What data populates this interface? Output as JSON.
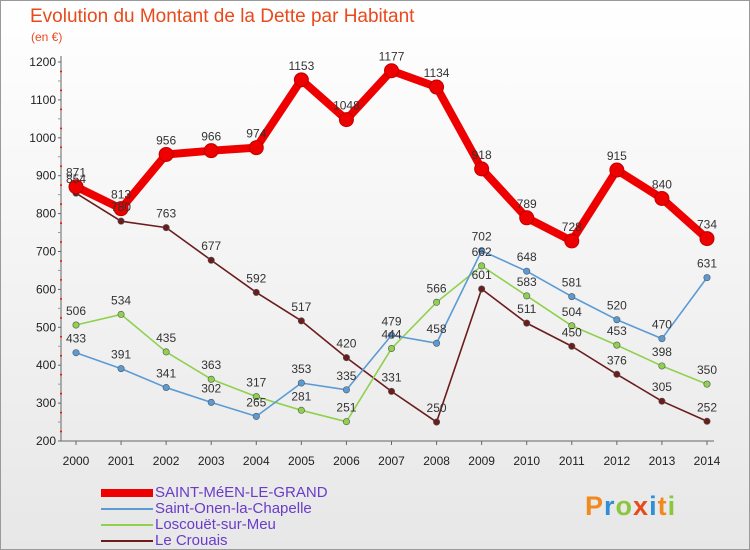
{
  "header": {
    "title": "Evolution du Montant de la Dette par Habitant",
    "unit": "(en €)"
  },
  "logo": {
    "text": "Proxiti",
    "colors": [
      "#f08a1f",
      "#2d8fd5",
      "#8cc63f",
      "#e84a1c",
      "#2d8fd5",
      "#f08a1f",
      "#8cc63f"
    ]
  },
  "chart_data": {
    "type": "line",
    "title": "Evolution du Montant de la Dette par Habitant",
    "subtitle": "(en €)",
    "x": [
      2000,
      2001,
      2002,
      2003,
      2004,
      2005,
      2006,
      2007,
      2008,
      2009,
      2010,
      2011,
      2012,
      2013,
      2014
    ],
    "ylim": [
      200,
      1200
    ],
    "yticks": [
      200,
      300,
      400,
      500,
      600,
      700,
      800,
      900,
      1000,
      1100,
      1200
    ],
    "grid": false,
    "legend_position": "bottom-left",
    "series": [
      {
        "name": "SAINT-MéEN-LE-GRAND",
        "color": "#ee0000",
        "values": [
          871,
          813,
          956,
          966,
          974,
          1153,
          1048,
          1177,
          1134,
          918,
          789,
          728,
          915,
          840,
          734
        ]
      },
      {
        "name": "Saint-Onen-la-Chapelle",
        "color": "#5b9bd5",
        "values": [
          433,
          391,
          341,
          302,
          265,
          353,
          335,
          479,
          458,
          702,
          648,
          581,
          520,
          470,
          631
        ]
      },
      {
        "name": "Loscouët-sur-Meu",
        "color": "#8fd14f",
        "values": [
          506,
          534,
          435,
          363,
          317,
          281,
          251,
          444,
          566,
          662,
          583,
          504,
          453,
          398,
          350
        ]
      },
      {
        "name": "Le Crouais",
        "color": "#6b1c1c",
        "values": [
          854,
          780,
          763,
          677,
          592,
          517,
          420,
          331,
          250,
          601,
          511,
          450,
          376,
          305,
          252
        ]
      }
    ]
  }
}
